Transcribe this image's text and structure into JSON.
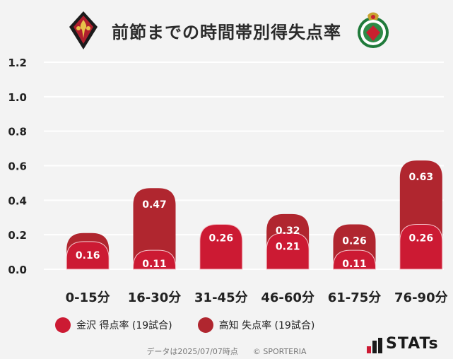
{
  "title": "前節までの時間帯別得失点率",
  "legend": {
    "kanazawa": "金沢 得点率 (19試合)",
    "kochi": "高知 失点率 (19試合)"
  },
  "footer": {
    "date_text": "データは2025/07/07時点",
    "copyright": "© SPORTERIA"
  },
  "stats_logo_text": "STATs",
  "colors": {
    "kanazawa": "#cc1a33",
    "kochi": "#b0262f",
    "axis_text": "#222222",
    "grid": "#ffffff"
  },
  "chart_data": {
    "type": "bar",
    "categories": [
      "0-15分",
      "16-30分",
      "31-45分",
      "46-60分",
      "61-75分",
      "76-90分"
    ],
    "series": [
      {
        "name": "金沢 得点率 (19試合)",
        "values": [
          0.16,
          0.11,
          0.26,
          0.21,
          0.11,
          0.26
        ]
      },
      {
        "name": "高知 失点率 (19試合)",
        "values": [
          0.21,
          0.47,
          0.26,
          0.32,
          0.26,
          0.63
        ],
        "labels": [
          "",
          "0.47",
          "",
          "0.32",
          "0.26",
          "0.63"
        ]
      }
    ],
    "y_ticks": [
      "0.0",
      "0.2",
      "0.4",
      "0.6",
      "0.8",
      "1.0",
      "1.2"
    ],
    "ylim": [
      0,
      1.2
    ],
    "grid": true,
    "legend_position": "bottom-left"
  }
}
